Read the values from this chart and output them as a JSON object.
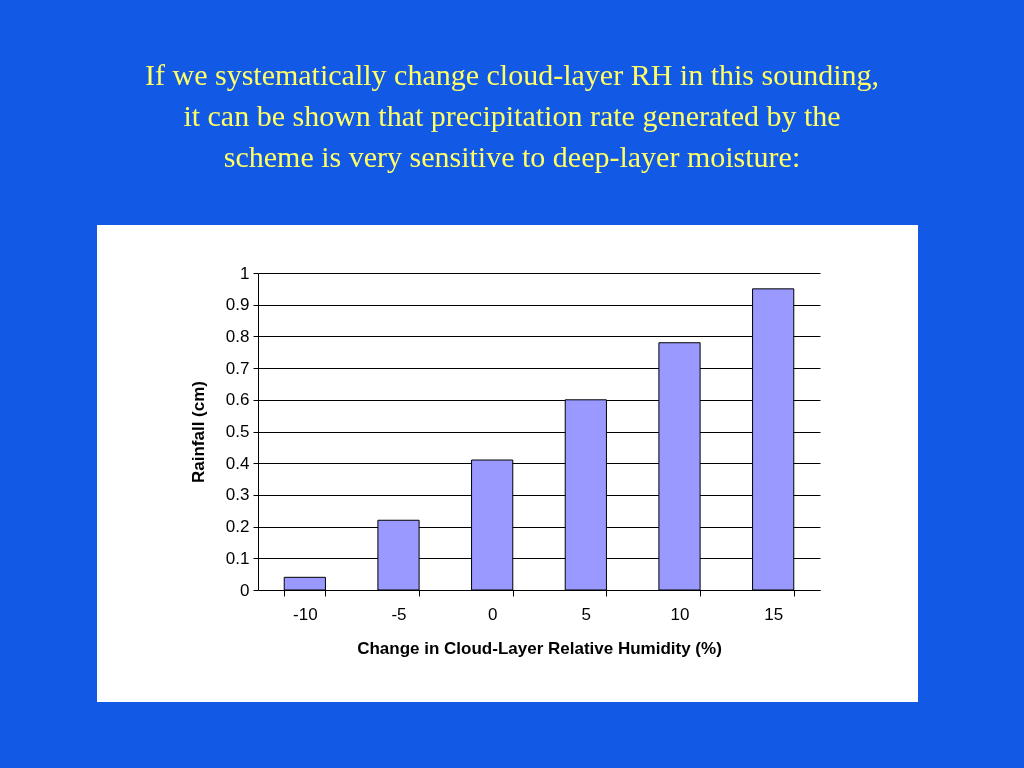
{
  "chart_data": {
    "type": "bar",
    "title": "If we systematically change cloud-layer RH in this sounding,\nit can be shown that precipitation rate generated by the\nscheme is very sensitive to deep-layer moisture:",
    "xlabel": "Change in Cloud-Layer Relative Humidity (%)",
    "ylabel": "Rainfall (cm)",
    "categories": [
      "-10",
      "-5",
      "0",
      "5",
      "10",
      "15"
    ],
    "values": [
      0.04,
      0.22,
      0.41,
      0.6,
      0.78,
      0.95
    ],
    "color": "#9999ff",
    "ylim": [
      0,
      1
    ],
    "yticks": [
      0,
      0.1,
      0.2,
      0.3,
      0.4,
      0.5,
      0.6,
      0.7,
      0.8,
      0.9,
      1
    ],
    "grid": "y"
  }
}
